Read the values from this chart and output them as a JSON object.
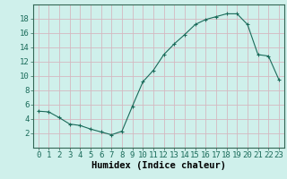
{
  "xlabel": "Humidex (Indice chaleur)",
  "bg_color": "#cff0eb",
  "grid_color": "#d4b8c0",
  "line_color": "#1a6b5a",
  "marker_color": "#1a6b5a",
  "x_values": [
    0,
    1,
    2,
    3,
    4,
    5,
    6,
    7,
    8,
    9,
    10,
    11,
    12,
    13,
    14,
    15,
    16,
    17,
    18,
    19,
    20,
    21,
    22,
    23
  ],
  "y_values": [
    5.1,
    5.0,
    4.2,
    3.3,
    3.1,
    2.6,
    2.2,
    1.8,
    2.3,
    5.8,
    9.2,
    10.8,
    13.0,
    14.5,
    15.8,
    17.2,
    17.9,
    18.3,
    18.7,
    18.7,
    17.2,
    13.0,
    12.8,
    9.5
  ],
  "ylim": [
    0,
    20
  ],
  "xlim": [
    -0.5,
    23.5
  ],
  "yticks": [
    2,
    4,
    6,
    8,
    10,
    12,
    14,
    16,
    18
  ],
  "xticks": [
    0,
    1,
    2,
    3,
    4,
    5,
    6,
    7,
    8,
    9,
    10,
    11,
    12,
    13,
    14,
    15,
    16,
    17,
    18,
    19,
    20,
    21,
    22,
    23
  ],
  "tick_fontsize": 6.5,
  "xlabel_fontsize": 7.5,
  "marker_size": 2.5,
  "linewidth": 0.8
}
